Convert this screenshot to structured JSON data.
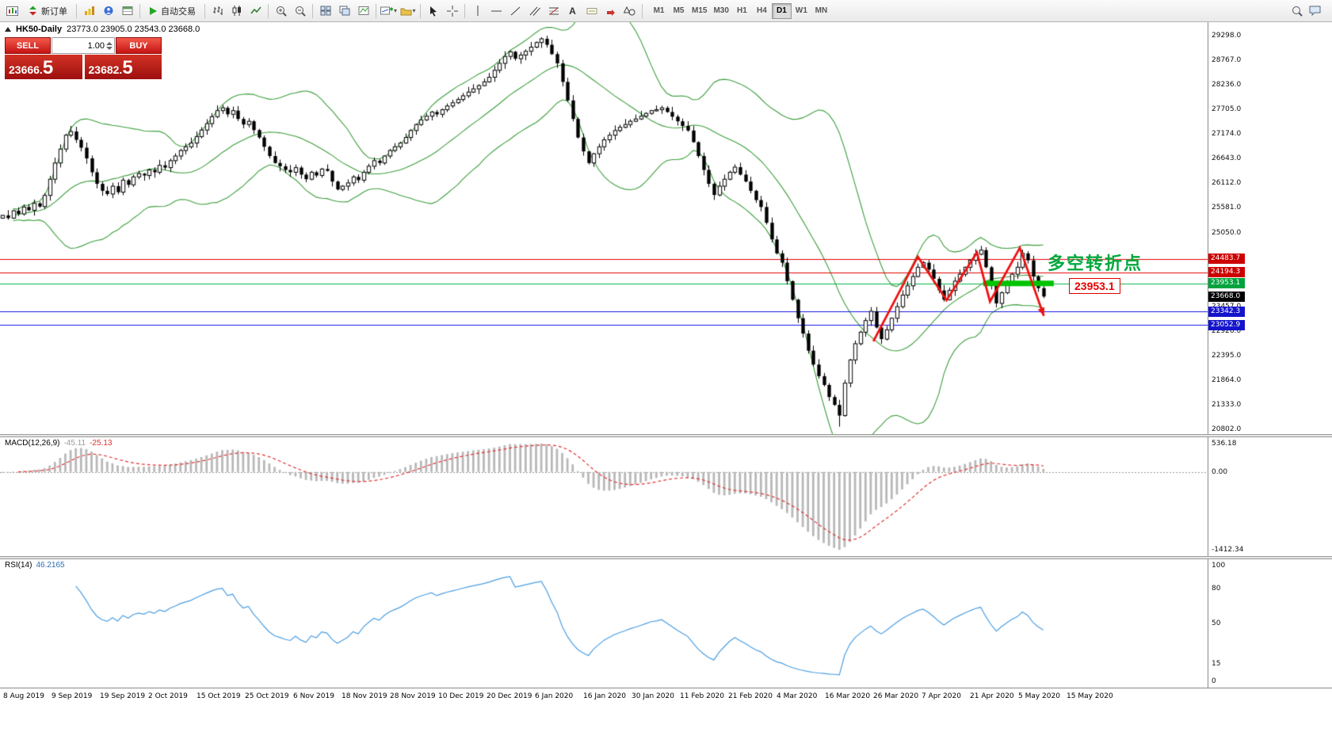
{
  "toolbar": {
    "new_order_label": "新订单",
    "autotrading_label": "自动交易",
    "timeframes": [
      "M1",
      "M5",
      "M15",
      "M30",
      "H1",
      "H4",
      "D1",
      "W1",
      "MN"
    ],
    "active_timeframe": "D1",
    "icons": {
      "text_tool": "A"
    }
  },
  "chart": {
    "symbol": "HK50-Daily",
    "ohlc_text": "23773.0 23905.0 23543.0 23668.0"
  },
  "trade_panel": {
    "sell_label": "SELL",
    "buy_label": "BUY",
    "volume": "1.00",
    "sell_price": {
      "main": "23666.",
      "big": "5"
    },
    "buy_price": {
      "main": "23682.",
      "big": "5"
    }
  },
  "annotations": {
    "turning_point": "多空转折点",
    "turning_point_color": "#00a83c",
    "level_label": "23953.1",
    "level_label_color": "#e80000"
  },
  "macd": {
    "label": "MACD(12,26,9)",
    "value_main": "-45.11",
    "value_signal": "-25.13",
    "scale_labels": [
      "536.18",
      "0.00",
      "-1412.34"
    ]
  },
  "rsi": {
    "label": "RSI(14)",
    "value": "46.2165",
    "scale_labels": [
      100,
      80,
      50,
      15,
      0
    ]
  },
  "chart_data": {
    "type": "candlestick",
    "symbol": "HK50",
    "timeframe": "Daily",
    "price_range": [
      20802.0,
      29298.0
    ],
    "axis_prices": [
      29298.0,
      28767.0,
      28236.0,
      27705.0,
      27174.0,
      26643.0,
      26112.0,
      25581.0,
      25050.0,
      24519.0,
      23988.0,
      23457.0,
      22926.0,
      22395.0,
      21864.0,
      21333.0,
      20802.0
    ],
    "closes": [
      25420,
      25360,
      25520,
      25450,
      25600,
      25530,
      25680,
      25610,
      25850,
      26200,
      26550,
      26850,
      27150,
      27230,
      27050,
      26880,
      26650,
      26350,
      26100,
      25950,
      25880,
      26050,
      25920,
      26180,
      26080,
      26250,
      26320,
      26280,
      26400,
      26350,
      26500,
      26450,
      26600,
      26700,
      26820,
      26900,
      26980,
      27120,
      27260,
      27400,
      27550,
      27680,
      27740,
      27600,
      27680,
      27500,
      27380,
      27450,
      27260,
      27100,
      26900,
      26700,
      26550,
      26480,
      26400,
      26350,
      26450,
      26300,
      26200,
      26350,
      26280,
      26420,
      26380,
      26150,
      25980,
      26050,
      26120,
      26250,
      26180,
      26350,
      26480,
      26600,
      26550,
      26700,
      26820,
      26900,
      26980,
      27100,
      27250,
      27380,
      27480,
      27560,
      27650,
      27600,
      27700,
      27780,
      27850,
      27920,
      28000,
      28080,
      28150,
      28220,
      28300,
      28400,
      28550,
      28700,
      28850,
      28950,
      28800,
      28880,
      28960,
      29050,
      29150,
      29230,
      29100,
      28900,
      28700,
      28300,
      27900,
      27500,
      27100,
      26800,
      26550,
      26750,
      26900,
      27050,
      27150,
      27250,
      27320,
      27380,
      27450,
      27500,
      27560,
      27620,
      27680,
      27700,
      27740,
      27650,
      27550,
      27450,
      27350,
      27250,
      27000,
      26700,
      26400,
      26100,
      25860,
      26050,
      26200,
      26350,
      26460,
      26300,
      26150,
      25950,
      25750,
      25600,
      25260,
      24900,
      24600,
      24400,
      24000,
      23600,
      23200,
      22870,
      22500,
      22200,
      21950,
      21760,
      21500,
      21330,
      21100,
      21800,
      22300,
      22650,
      22900,
      23150,
      23350,
      23000,
      22750,
      22950,
      23200,
      23450,
      23700,
      23900,
      24100,
      24300,
      24400,
      24250,
      24050,
      23800,
      23600,
      23800,
      24000,
      24150,
      24300,
      24450,
      24580,
      24670,
      24300,
      23900,
      23520,
      23750,
      23950,
      24150,
      24300,
      24600,
      24450,
      24100,
      23850,
      23668
    ],
    "bollinger": {
      "period": 20,
      "deviation": 2,
      "color": "#3c9e3c"
    },
    "hlines": [
      {
        "label": "24483.7",
        "price": 24483.7,
        "line_color": "#e60000",
        "tag_bg": "#cc0000"
      },
      {
        "label": "24194.3",
        "price": 24194.3,
        "line_color": "#e60000",
        "tag_bg": "#cc0000"
      },
      {
        "label": "23953.1",
        "price": 23953.1,
        "line_color": "#00b44a",
        "tag_bg": "#00a33e"
      },
      {
        "label": "23342.3",
        "price": 23342.3,
        "line_color": "#1515e0",
        "tag_bg": "#1414cc"
      },
      {
        "label": "23052.9",
        "price": 23052.9,
        "line_color": "#1515e0",
        "tag_bg": "#1414cc"
      }
    ],
    "last_price_tag": {
      "label": "23668.0",
      "price": 23668.0,
      "tag_bg": "#000000"
    },
    "thick_segment": {
      "price": 23953.1,
      "from_bar": 188,
      "to_bar": 201.5,
      "color": "#00c400",
      "width": 7
    },
    "zigzag": {
      "color": "#ee1111",
      "points_bar_price": [
        [
          167,
          22700
        ],
        [
          175.5,
          24530
        ],
        [
          181,
          23590
        ],
        [
          186.8,
          24620
        ],
        [
          189.3,
          23560
        ],
        [
          195,
          24720
        ],
        [
          199.6,
          23250
        ]
      ]
    },
    "macd_style": {
      "histogram_color": "#b8b8b8",
      "signal_color": "#e03232"
    },
    "rsi_style": {
      "line_color": "#4a9de0"
    },
    "dates": [
      "8 Aug 2019",
      "9 Sep 2019",
      "19 Sep 2019",
      "2 Oct 2019",
      "15 Oct 2019",
      "25 Oct 2019",
      "6 Nov 2019",
      "18 Nov 2019",
      "28 Nov 2019",
      "10 Dec 2019",
      "20 Dec 2019",
      "6 Jan 2020",
      "16 Jan 2020",
      "30 Jan 2020",
      "11 Feb 2020",
      "21 Feb 2020",
      "4 Mar 2020",
      "16 Mar 2020",
      "26 Mar 2020",
      "7 Apr 2020",
      "21 Apr 2020",
      "5 May 2020",
      "15 May 2020"
    ]
  }
}
